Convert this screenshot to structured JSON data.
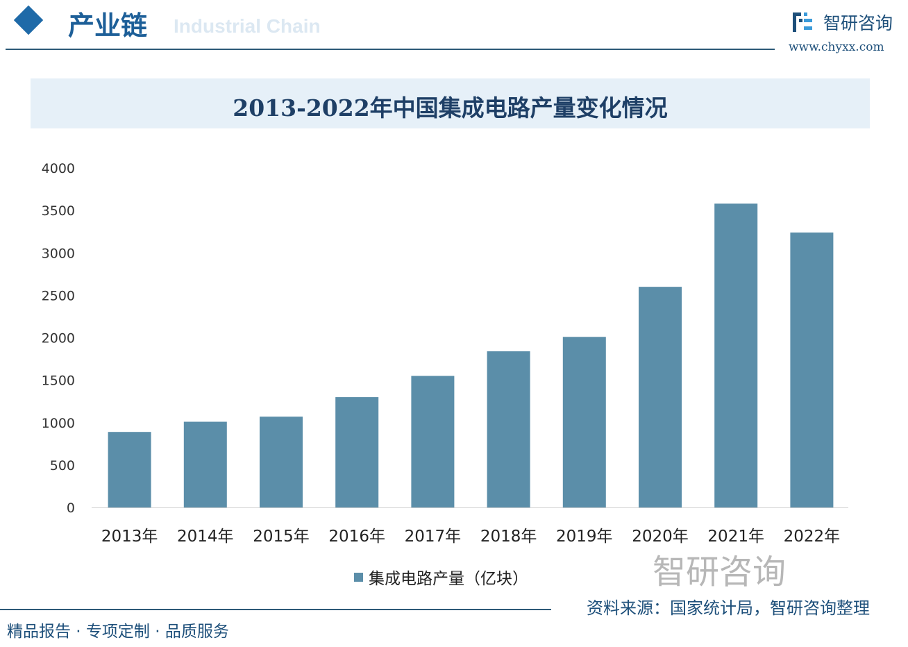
{
  "header": {
    "section_title": "产业链",
    "section_subtitle": "Industrial Chain",
    "brand_name": "智研咨询",
    "brand_url": "www.chyxx.com"
  },
  "chart_data": {
    "type": "bar",
    "title": "2013-2022年中国集成电路产量变化情况",
    "categories": [
      "2013年",
      "2014年",
      "2015年",
      "2016年",
      "2017年",
      "2018年",
      "2019年",
      "2020年",
      "2021年",
      "2022年"
    ],
    "series": [
      {
        "name": "集成电路产量（亿块）",
        "values": [
          890,
          1010,
          1070,
          1300,
          1550,
          1840,
          2010,
          2600,
          3580,
          3240
        ],
        "color": "#5b8ea9"
      }
    ],
    "yticks": [
      "0",
      "500",
      "1000",
      "1500",
      "2000",
      "2500",
      "3000",
      "3500",
      "4000"
    ],
    "ylim": [
      0,
      4000
    ],
    "grid": false,
    "legend": "bottom"
  },
  "footer": {
    "source": "资料来源：国家统计局，智研咨询整理",
    "slogan": "精品报告 · 专项定制 · 品质服务",
    "watermark": "智研咨询"
  }
}
